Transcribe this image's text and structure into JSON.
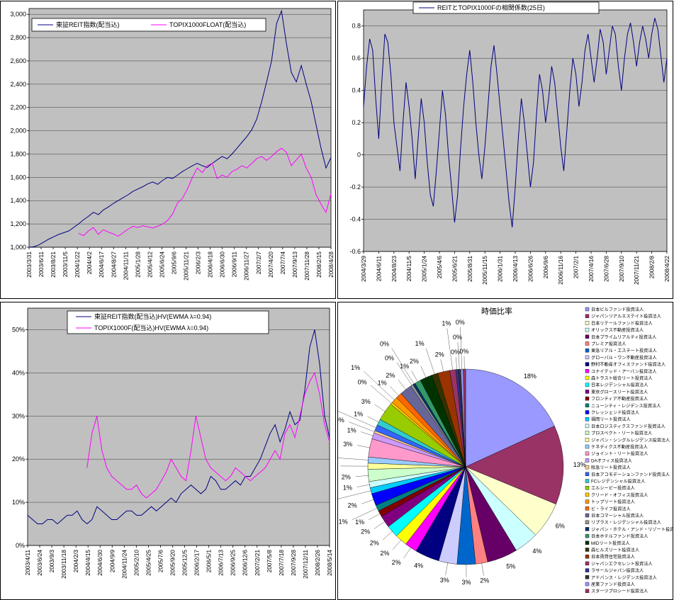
{
  "page": {
    "description": "REIT and TOPIX analysis dashboard with four Excel-style charts"
  },
  "chart_data": [
    {
      "id": "price",
      "type": "line",
      "title": "",
      "ymin": 1000,
      "ymax": 3050,
      "grid": true,
      "legend_position": "top-left-inside",
      "yticks": [
        {
          "v": 1000,
          "label": "1,000"
        },
        {
          "v": 1200,
          "label": "1,200"
        },
        {
          "v": 1400,
          "label": "1,400"
        },
        {
          "v": 1600,
          "label": "1,600"
        },
        {
          "v": 1800,
          "label": "1,800"
        },
        {
          "v": 2000,
          "label": "2,000"
        },
        {
          "v": 2200,
          "label": "2,200"
        },
        {
          "v": 2400,
          "label": "2,400"
        },
        {
          "v": 2600,
          "label": "2,600"
        },
        {
          "v": 2800,
          "label": "2,800"
        },
        {
          "v": 3000,
          "label": "3,000"
        }
      ],
      "xlabels": [
        "2003/3/31",
        "2003/6/11",
        "2003/8/21",
        "2003/11/5",
        "2004/1/22",
        "2004/4/2",
        "2004/6/17",
        "2004/8/27",
        "2004/11/11",
        "2005/1/28",
        "2005/4/12",
        "2005/6/24",
        "2005/9/6",
        "2005/11/21",
        "2006/2/3",
        "2006/4/18",
        "2006/6/30",
        "2006/9/11",
        "2006/11/27",
        "2007/2/7",
        "2007/4/20",
        "2007/7/4",
        "2007/9/13",
        "2007/11/28",
        "2008/2/15",
        "2008/4/28"
      ],
      "series": [
        {
          "name": "東証REIT指数(配当込)",
          "color": "#000080",
          "values": [
            1000,
            1005,
            1020,
            1045,
            1070,
            1090,
            1110,
            1125,
            1140,
            1170,
            1200,
            1235,
            1265,
            1300,
            1280,
            1320,
            1345,
            1375,
            1400,
            1425,
            1450,
            1480,
            1500,
            1520,
            1545,
            1560,
            1540,
            1575,
            1600,
            1590,
            1620,
            1650,
            1675,
            1700,
            1720,
            1700,
            1685,
            1720,
            1750,
            1780,
            1760,
            1800,
            1850,
            1900,
            1950,
            2010,
            2100,
            2250,
            2420,
            2600,
            2920,
            3030,
            2750,
            2500,
            2420,
            2560,
            2400,
            2250,
            2050,
            1850,
            1680,
            1770
          ]
        },
        {
          "name": "TOPIX1000FLOAT(配当込)",
          "color": "#FF00FF",
          "values": [
            null,
            null,
            null,
            null,
            null,
            null,
            null,
            null,
            null,
            null,
            1120,
            1100,
            1140,
            1170,
            1110,
            1150,
            1130,
            1115,
            1095,
            1125,
            1155,
            1180,
            1170,
            1185,
            1175,
            1165,
            1180,
            1200,
            1230,
            1285,
            1380,
            1420,
            1500,
            1600,
            1680,
            1640,
            1700,
            1720,
            1590,
            1620,
            1600,
            1650,
            1670,
            1700,
            1680,
            1720,
            1760,
            1780,
            1745,
            1780,
            1820,
            1850,
            1815,
            1700,
            1750,
            1800,
            1680,
            1600,
            1450,
            1370,
            1300,
            1460
          ]
        }
      ]
    },
    {
      "id": "corr",
      "type": "line",
      "title": "REITとTOPIX1000Fの相関係数(25日)",
      "ymin": -0.6,
      "ymax": 0.9,
      "grid": true,
      "legend_position": "top-center",
      "yticks": [
        {
          "v": -0.6,
          "label": "-0.6"
        },
        {
          "v": -0.4,
          "label": "-0.4"
        },
        {
          "v": -0.2,
          "label": "-0.2"
        },
        {
          "v": 0,
          "label": "0"
        },
        {
          "v": 0.2,
          "label": "0.2"
        },
        {
          "v": 0.4,
          "label": "0.4"
        },
        {
          "v": 0.6,
          "label": "0.6"
        },
        {
          "v": 0.8,
          "label": "0.8"
        }
      ],
      "xlabels": [
        "2004/3/29",
        "2004/6/11",
        "2004/8/23",
        "2004/11/5",
        "2005/1/24",
        "2005/4/6",
        "2005/6/21",
        "2005/8/31",
        "2005/11/15",
        "2006/1/31",
        "2006/4/13",
        "2006/6/26",
        "2006/9/6",
        "2006/11/16",
        "2007/2/1",
        "2007/4/16",
        "2007/6/28",
        "2007/9/10",
        "2007/11/21",
        "2008/2/8",
        "2008/4/22"
      ],
      "series": [
        {
          "name": "REITとTOPIX1000Fの相関係数(25日)",
          "color": "#000080",
          "values": [
            0.3,
            0.55,
            0.72,
            0.65,
            0.35,
            0.1,
            0.45,
            0.75,
            0.7,
            0.5,
            0.2,
            0.05,
            -0.1,
            0.2,
            0.45,
            0.3,
            0.1,
            -0.15,
            0.1,
            0.35,
            0.2,
            -0.05,
            -0.25,
            -0.32,
            -0.1,
            0.15,
            0.4,
            0.25,
            0.0,
            -0.2,
            -0.42,
            -0.25,
            0.05,
            0.3,
            0.5,
            0.65,
            0.45,
            0.2,
            0.0,
            -0.15,
            0.05,
            0.3,
            0.55,
            0.68,
            0.5,
            0.3,
            0.1,
            -0.1,
            -0.3,
            -0.45,
            -0.2,
            0.1,
            0.35,
            0.2,
            0.0,
            -0.2,
            -0.05,
            0.25,
            0.5,
            0.4,
            0.2,
            0.35,
            0.55,
            0.45,
            0.25,
            0.05,
            -0.1,
            0.15,
            0.4,
            0.6,
            0.5,
            0.3,
            0.45,
            0.65,
            0.75,
            0.6,
            0.45,
            0.6,
            0.78,
            0.7,
            0.5,
            0.65,
            0.8,
            0.75,
            0.55,
            0.4,
            0.6,
            0.75,
            0.82,
            0.7,
            0.55,
            0.7,
            0.8,
            0.72,
            0.6,
            0.75,
            0.85,
            0.78,
            0.62,
            0.45,
            0.6
          ]
        }
      ]
    },
    {
      "id": "vol",
      "type": "line",
      "title": "",
      "ymin": 0,
      "ymax": 55,
      "grid": true,
      "legend_position": "top-center-inside",
      "yticks": [
        {
          "v": 0,
          "label": "0%"
        },
        {
          "v": 10,
          "label": "10%"
        },
        {
          "v": 20,
          "label": "20%"
        },
        {
          "v": 30,
          "label": "30%"
        },
        {
          "v": 40,
          "label": "40%"
        },
        {
          "v": 50,
          "label": "50%"
        }
      ],
      "xlabels": [
        "2003/4/11",
        "2003/6/24",
        "2003/9/3",
        "2003/11/18",
        "2004/2/3",
        "2004/4/15",
        "2004/6/30",
        "2004/9/9",
        "2004/11/24",
        "2005/2/10",
        "2005/4/25",
        "2005/7/6",
        "2005/9/20",
        "2005/12/5",
        "2006/2/17",
        "2006/5/1",
        "2006/7/13",
        "2006/9/25",
        "2006/12/6",
        "2007/2/21",
        "2007/5/8",
        "2007/7/18",
        "2007/9/28",
        "2007/12/11",
        "2008/2/26",
        "2008/5/14"
      ],
      "series": [
        {
          "name": "東証REIT指数(配当込)HV(EWMA λ=0.94)",
          "color": "#000080",
          "values": [
            7,
            6,
            5,
            5,
            6,
            6,
            5,
            6,
            7,
            7,
            8,
            6,
            5,
            6,
            9,
            8,
            7,
            6,
            6,
            7,
            8,
            8,
            7,
            7,
            8,
            9,
            8,
            9,
            10,
            11,
            10,
            12,
            13,
            14,
            13,
            12,
            13,
            16,
            15,
            13,
            13,
            14,
            15,
            14,
            16,
            16,
            18,
            20,
            23,
            26,
            28,
            24,
            27,
            31,
            28,
            29,
            36,
            46,
            50,
            42,
            30,
            25
          ]
        },
        {
          "name": "TOPIX1000F(配当込)HV(EWMA λ=0.94)",
          "color": "#FF00FF",
          "values": [
            null,
            null,
            null,
            null,
            null,
            null,
            null,
            null,
            null,
            null,
            null,
            null,
            18,
            26,
            30,
            22,
            18,
            16,
            15,
            14,
            13,
            13,
            14,
            12,
            11,
            12,
            13,
            15,
            17,
            20,
            18,
            16,
            15,
            22,
            30,
            25,
            20,
            18,
            17,
            16,
            15,
            16,
            18,
            17,
            16,
            15,
            16,
            17,
            18,
            20,
            22,
            20,
            26,
            28,
            25,
            30,
            35,
            38,
            40,
            35,
            28,
            24
          ]
        }
      ]
    },
    {
      "id": "pie",
      "type": "pie",
      "title": "時価比率",
      "legend_position": "right",
      "values": [
        18,
        13,
        6,
        4,
        5,
        2,
        3,
        3,
        4,
        2,
        2,
        2,
        2,
        1,
        1,
        2,
        1,
        1,
        2,
        1,
        1,
        3,
        1,
        0.4,
        1,
        1,
        3,
        0.4,
        1,
        1,
        2,
        0.4,
        0.4,
        1,
        2,
        1,
        2,
        1,
        0.4,
        0.4,
        0.4,
        0.4
      ],
      "labels": [
        "日本ビルファンド投資法人",
        "ジャパンリアルエステイト投資法人",
        "日本リテールファンド投資法人",
        "オリックス不動産投資法人",
        "日本プライムリアルティ投資法人",
        "プレミア投資法人",
        "東急リアル・エステート投資法人",
        "グローバル・ワン不動産投資法人",
        "野村不動産オフィスファンド投資法人",
        "ユナイテッド・アーバン投資法人",
        "森トラスト総合リート投資法人",
        "日本レジデンシャル投資法人",
        "東京グロースリート投資法人",
        "フロンティア不動産投資法人",
        "ニューシティ・レジデンス投資法人",
        "クレッシェンド投資法人",
        "福岡リート投資法人",
        "日本ロジスティクスファンド投資法人",
        "プロスペクト・リート投資法人",
        "ジャパン・シングルレジデンス投資法人",
        "ケネディクス不動産投資法人",
        "ジョイント・リート投資法人",
        "DAオフィス投資法人",
        "阪急リート投資法人",
        "日本アコモデーションファンド投資法人",
        "FCレジデンシャル投資法人",
        "エルシーピー投資法人",
        "クリード・オフィス投資法人",
        "トップリート投資法人",
        "ビ・ライフ投資法人",
        "日本コマーシャル投資法人",
        "リプラス・レジデンシャル投資法人",
        "ジャパン・ホテル・アンド・リゾート投資法人",
        "日本ホテルファンド投資法人",
        "MIDリート投資法人",
        "森ヒルズリート投資法人",
        "日本賃貸住宅投資法人",
        "ジャパンエクセレント投資法人",
        "ラサールジャパン投資法人",
        "アドバンス・レジデンス投資法人",
        "産業ファンド投資法人",
        "スターツプロシード投資法人"
      ],
      "palette": [
        "#9999FF",
        "#993366",
        "#FFFFCC",
        "#CCFFFF",
        "#660066",
        "#FF8080",
        "#0066CC",
        "#CCCCFF",
        "#000080",
        "#FF00FF",
        "#FFFF00",
        "#00FFFF",
        "#800080",
        "#800000",
        "#008080",
        "#0000FF",
        "#00CCFF",
        "#CCFFFF",
        "#CCFFCC",
        "#FFFF99",
        "#99CCFF",
        "#FF99CC",
        "#CC99FF",
        "#FFCC99",
        "#3366FF",
        "#33CCCC",
        "#99CC00",
        "#FFCC00",
        "#FF9900",
        "#FF6600",
        "#666699",
        "#969696",
        "#003366",
        "#339966",
        "#003300",
        "#333300",
        "#993300",
        "#993366",
        "#333399",
        "#333333"
      ]
    }
  ],
  "style": {
    "plot_bg": "#C0C0C0",
    "grid_color": "#000000",
    "axis_color": "#000000"
  }
}
